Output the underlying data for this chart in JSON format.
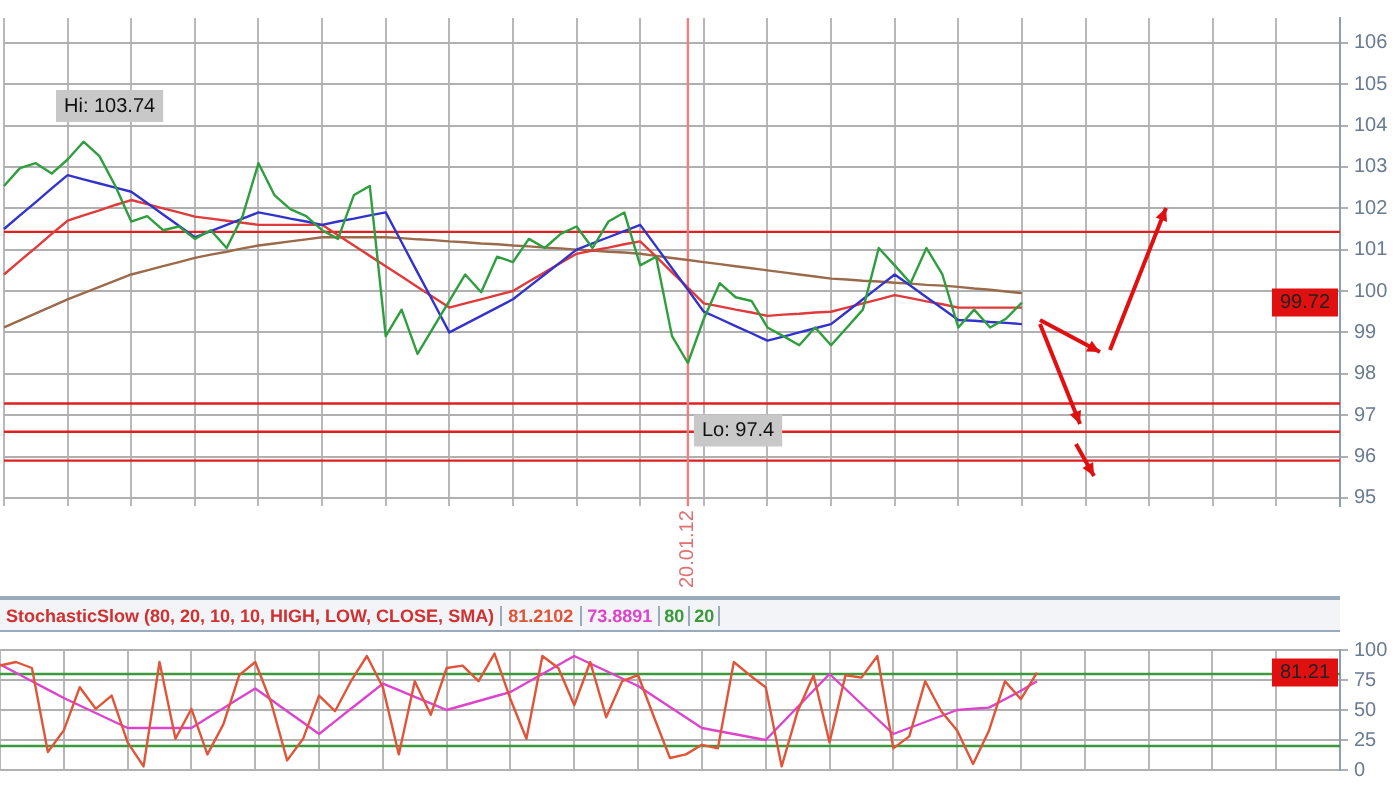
{
  "chart_data": [
    {
      "type": "line",
      "categories": [
        null,
        null,
        null,
        null,
        null,
        null,
        null,
        null,
        null,
        null,
        null,
        null,
        null,
        null,
        null,
        null,
        null,
        null,
        null,
        null,
        null,
        null,
        null,
        null,
        null,
        null,
        null,
        null,
        null,
        null,
        null,
        null,
        null,
        null,
        null,
        null,
        null,
        null,
        null,
        null,
        null,
        null,
        null,
        "20.01.12",
        null,
        null,
        null,
        null,
        null,
        null,
        null,
        null,
        null,
        null,
        null,
        null,
        null,
        null,
        null,
        null,
        null,
        null,
        null,
        null,
        null,
        null,
        null,
        null,
        null,
        null,
        null,
        null,
        null,
        null,
        null,
        null,
        null,
        null,
        null,
        null,
        null,
        null,
        null,
        null,
        null
      ],
      "ylim": [
        94.8,
        106.6
      ],
      "yticks": [
        95,
        96,
        97,
        98,
        99,
        100,
        101,
        102,
        103,
        104,
        105,
        106
      ],
      "grid": true,
      "legend": false,
      "series": [
        {
          "color": "#2e9e3e",
          "values": [
            102.54,
            102.97,
            103.09,
            102.84,
            103.18,
            103.61,
            103.26,
            102.54,
            101.68,
            101.81,
            101.47,
            101.56,
            101.26,
            101.47,
            101.04,
            101.81,
            103.09,
            102.32,
            101.98,
            101.81,
            101.47,
            101.26,
            102.32,
            102.54,
            98.91,
            99.55,
            98.48,
            99.12,
            99.76,
            100.4,
            99.97,
            100.83,
            100.7,
            101.26,
            101.04,
            101.38,
            101.56,
            101.04,
            101.68,
            101.9,
            100.62,
            100.83,
            98.91,
            98.26,
            99.33,
            100.19,
            99.85,
            99.76,
            99.12,
            98.91,
            98.69,
            99.12,
            98.69,
            99.12,
            99.55,
            101.04,
            100.62,
            100.19,
            101.04,
            100.4,
            99.12,
            99.55,
            99.12,
            99.33,
            99.72,
            null,
            null,
            null,
            null,
            null,
            null,
            null,
            null,
            null,
            null,
            null,
            null,
            null,
            null,
            null,
            null,
            null,
            null,
            null,
            null
          ]
        },
        {
          "color": "#3333cc",
          "values": [
            101.5,
            101.83,
            102.15,
            102.48,
            102.8,
            102.7,
            102.6,
            102.5,
            102.4,
            102.13,
            101.85,
            101.58,
            101.3,
            101.45,
            101.6,
            101.75,
            101.9,
            101.83,
            101.75,
            101.68,
            101.6,
            101.68,
            101.75,
            101.83,
            101.9,
            101.18,
            100.45,
            99.73,
            99.0,
            99.2,
            99.4,
            99.6,
            99.8,
            100.1,
            100.4,
            100.7,
            101.0,
            101.15,
            101.3,
            101.45,
            101.6,
            101.08,
            100.55,
            100.03,
            99.5,
            99.33,
            99.15,
            98.98,
            98.8,
            98.9,
            99.0,
            99.1,
            99.2,
            99.5,
            99.8,
            100.1,
            100.4,
            100.13,
            99.85,
            99.58,
            99.3,
            99.28,
            99.25,
            99.23,
            99.2,
            null,
            null,
            null,
            null,
            null,
            null,
            null,
            null,
            null,
            null,
            null,
            null,
            null,
            null,
            null,
            null,
            null,
            null,
            null,
            null
          ]
        },
        {
          "color": "#e03a3a",
          "values": [
            100.4,
            100.73,
            101.05,
            101.38,
            101.7,
            101.83,
            101.95,
            102.08,
            102.2,
            102.1,
            102.0,
            101.9,
            101.8,
            101.75,
            101.7,
            101.65,
            101.6,
            101.6,
            101.6,
            101.6,
            101.6,
            101.35,
            101.1,
            100.85,
            100.6,
            100.35,
            100.1,
            99.85,
            99.6,
            99.7,
            99.8,
            99.9,
            100.0,
            100.23,
            100.45,
            100.68,
            100.9,
            100.98,
            101.05,
            101.13,
            101.2,
            100.83,
            100.45,
            100.08,
            99.7,
            99.63,
            99.55,
            99.48,
            99.4,
            99.43,
            99.45,
            99.48,
            99.5,
            99.6,
            99.7,
            99.8,
            99.9,
            99.83,
            99.75,
            99.68,
            99.6,
            99.6,
            99.6,
            99.6,
            99.6,
            null,
            null,
            null,
            null,
            null,
            null,
            null,
            null,
            null,
            null,
            null,
            null,
            null,
            null,
            null,
            null,
            null,
            null,
            null,
            null
          ]
        },
        {
          "color": "#9a6a4a",
          "values": [
            99.12,
            99.29,
            99.46,
            99.63,
            99.8,
            99.95,
            100.1,
            100.25,
            100.4,
            100.5,
            100.6,
            100.7,
            100.8,
            100.88,
            100.95,
            101.03,
            101.1,
            101.15,
            101.2,
            101.25,
            101.3,
            101.3,
            101.3,
            101.3,
            101.3,
            101.28,
            101.25,
            101.23,
            101.2,
            101.18,
            101.15,
            101.13,
            101.1,
            101.08,
            101.05,
            101.03,
            101.0,
            100.98,
            100.95,
            100.93,
            100.9,
            100.85,
            100.8,
            100.75,
            100.7,
            100.65,
            100.6,
            100.55,
            100.5,
            100.45,
            100.4,
            100.35,
            100.3,
            100.28,
            100.25,
            100.23,
            100.2,
            100.18,
            100.15,
            100.13,
            100.1,
            100.06,
            100.03,
            99.99,
            99.95,
            null,
            null,
            null,
            null,
            null,
            null,
            null,
            null,
            null,
            null,
            null,
            null,
            null,
            null,
            null,
            null,
            null,
            null,
            null,
            null
          ]
        }
      ],
      "ref_lines": [
        {
          "axis": "y",
          "value": 101.43,
          "color": "#e02020"
        },
        {
          "axis": "y",
          "value": 97.28,
          "color": "#e02020"
        },
        {
          "axis": "y",
          "value": 96.6,
          "color": "#e02020"
        },
        {
          "axis": "y",
          "value": 95.9,
          "color": "#e02020"
        },
        {
          "axis": "x",
          "value": "20.01.12",
          "color": "#f08080"
        }
      ],
      "annotations": [
        "Hi: 103.74",
        {
          "text": "Lo: 97.4",
          "x": "20.01.12",
          "y": 97.4
        },
        {
          "text": "99.72",
          "y": 99.72
        }
      ]
    },
    {
      "type": "line",
      "title": "StochasticSlow (80, 20, 10, 10, HIGH, LOW, CLOSE, SMA)",
      "categories": [
        null,
        null,
        null,
        null,
        null,
        null,
        null,
        null,
        null,
        null,
        null,
        null,
        null,
        null,
        null,
        null,
        null,
        null,
        null,
        null,
        null,
        null,
        null,
        null,
        null,
        null,
        null,
        null,
        null,
        null,
        null,
        null,
        null,
        null,
        null,
        null,
        null,
        null,
        null,
        null,
        null,
        null,
        null,
        null,
        null,
        null,
        null,
        null,
        null,
        null,
        null,
        null,
        null,
        null,
        null,
        null,
        null,
        null,
        null,
        null,
        null,
        null,
        null,
        null,
        null,
        null,
        null,
        null,
        null,
        null,
        null,
        null,
        null,
        null,
        null,
        null,
        null,
        null,
        null,
        null,
        null,
        null,
        null,
        null,
        null
      ],
      "ylim": [
        0,
        100
      ],
      "yticks": [
        0,
        25,
        50,
        75,
        100
      ],
      "grid": true,
      "tick_labels": "y",
      "legend": "top left",
      "series": [
        {
          "name": "81.2102",
          "color": "#e0553a",
          "values": [
            87,
            90,
            85,
            15,
            33,
            69,
            51,
            62,
            23,
            3,
            90,
            26,
            51,
            13,
            38,
            79,
            90,
            56,
            8,
            26,
            62,
            49,
            74,
            95,
            69,
            13,
            74,
            46,
            85,
            87,
            74,
            97,
            59,
            26,
            95,
            85,
            54,
            90,
            44,
            74,
            79,
            44,
            10,
            13,
            21,
            18,
            90,
            79,
            69,
            3,
            49,
            79,
            23,
            79,
            77,
            95,
            18,
            28,
            74,
            49,
            33,
            5,
            33,
            74,
            59,
            81.21,
            null,
            null,
            null,
            null,
            null,
            null,
            null,
            null,
            null,
            null,
            null,
            null,
            null,
            null,
            null,
            null,
            null,
            null,
            null
          ]
        },
        {
          "name": "73.8891",
          "color": "#dd44cc",
          "values": [
            88,
            81,
            74,
            67,
            60,
            53.75,
            47.5,
            41.25,
            35,
            35,
            35,
            35,
            35,
            43.25,
            51.5,
            59.75,
            68,
            58.5,
            49,
            39.5,
            30,
            40.5,
            51,
            61.5,
            72,
            66.5,
            61,
            55.5,
            50,
            53.75,
            57.5,
            61.25,
            65,
            72.5,
            80,
            87.5,
            95,
            88.75,
            82.5,
            76.25,
            70,
            61.25,
            52.5,
            43.75,
            35,
            32.5,
            30,
            27.5,
            25,
            38.75,
            52.5,
            66.25,
            80,
            67.5,
            55,
            42.5,
            30,
            35,
            40,
            45,
            50,
            51,
            52,
            59,
            66,
            73.89,
            null,
            null,
            null,
            null,
            null,
            null,
            null,
            null,
            null,
            null,
            null,
            null,
            null,
            null,
            null,
            null,
            null,
            null,
            null
          ]
        }
      ],
      "ref_lines": [
        {
          "axis": "y",
          "value": 80,
          "label": "80",
          "color": "#3a9a3a"
        },
        {
          "axis": "y",
          "value": 20,
          "label": "20",
          "color": "#3a9a3a"
        }
      ],
      "annotations": [
        {
          "text": "81.21",
          "y": 81.21
        }
      ]
    }
  ]
}
